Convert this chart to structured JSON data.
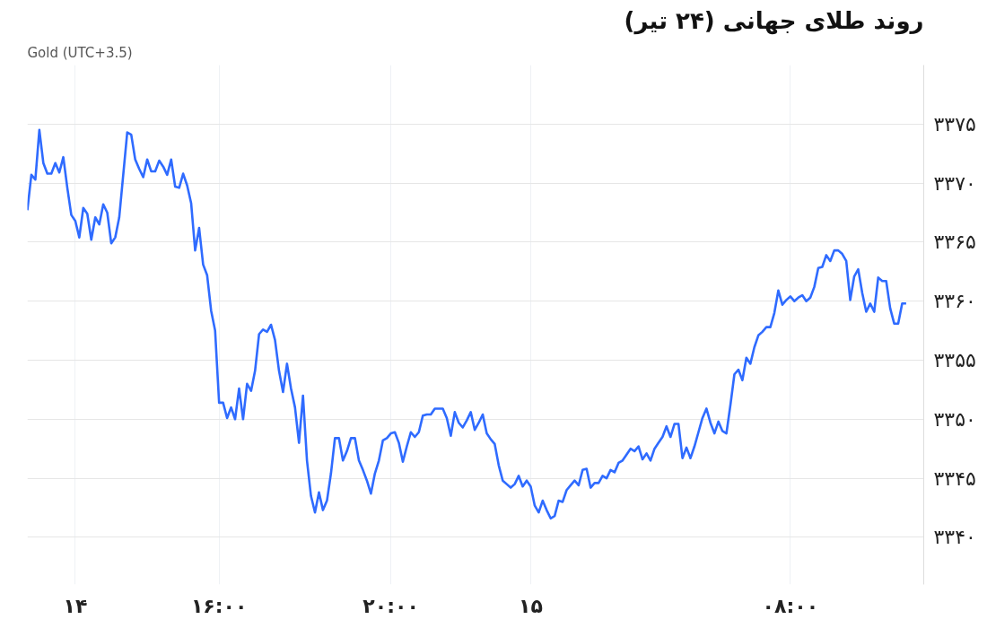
{
  "chart_data": {
    "type": "line",
    "title": "روند طلای جهانی (۲۴ تیر)",
    "subtitle": "Gold (UTC+3.5)",
    "categories": [
      null,
      null,
      null,
      null,
      null,
      null,
      null,
      null,
      null,
      null,
      null,
      null,
      "۱۴",
      null,
      null,
      null,
      null,
      null,
      null,
      null,
      null,
      null,
      null,
      null,
      null,
      null,
      null,
      null,
      null,
      null,
      null,
      null,
      null,
      null,
      null,
      null,
      null,
      null,
      null,
      null,
      null,
      null,
      null,
      null,
      null,
      null,
      null,
      null,
      "۱۶:۰۰",
      null,
      null,
      null,
      null,
      null,
      null,
      null,
      null,
      null,
      null,
      null,
      null,
      null,
      null,
      null,
      null,
      null,
      null,
      null,
      null,
      null,
      null,
      null,
      null,
      null,
      null,
      null,
      null,
      null,
      null,
      null,
      null,
      null,
      null,
      null,
      null,
      null,
      null,
      null,
      null,
      null,
      null,
      "۲۰:۰۰",
      null,
      null,
      null,
      null,
      null,
      null,
      null,
      null,
      null,
      null,
      null,
      null,
      null,
      null,
      null,
      null,
      null,
      null,
      null,
      null,
      null,
      null,
      null,
      null,
      null,
      null,
      null,
      null,
      null,
      null,
      null,
      null,
      null,
      null,
      "۱۵",
      null,
      null,
      null,
      null,
      null,
      null,
      null,
      null,
      null,
      null,
      null,
      null,
      null,
      null,
      null,
      null,
      null,
      null,
      null,
      null,
      null,
      null,
      null,
      null,
      null,
      null,
      null,
      null,
      null,
      null,
      null,
      null,
      null,
      null,
      null,
      null,
      null,
      null,
      null,
      null,
      null,
      null,
      null,
      null,
      null,
      null,
      null,
      null,
      null,
      null,
      null,
      null,
      null,
      null,
      null,
      null,
      null,
      null,
      null,
      null,
      null,
      null,
      null,
      null,
      "۰۸:۰۰",
      null,
      null,
      null,
      null,
      null,
      null,
      null,
      null,
      null,
      null,
      null,
      null,
      null,
      null,
      null,
      null,
      null,
      null,
      null,
      null,
      null,
      null,
      null,
      null,
      null,
      null,
      null,
      null,
      null
    ],
    "series": [
      {
        "color": "#2f6bff",
        "values": [
          3367.7,
          3370.7,
          3370.3,
          3374.5,
          3371.7,
          3370.8,
          3370.8,
          3371.7,
          3370.9,
          3372.2,
          3369.6,
          3367.3,
          3366.8,
          3365.4,
          3367.9,
          3367.4,
          3365.2,
          3367.1,
          3366.5,
          3368.2,
          3367.5,
          3364.9,
          3365.4,
          3367.1,
          3370.7,
          3374.3,
          3374.1,
          3372.0,
          3371.2,
          3370.5,
          3372.0,
          3371.0,
          3371.0,
          3371.9,
          3371.4,
          3370.7,
          3372.0,
          3369.7,
          3369.6,
          3370.8,
          3369.8,
          3368.3,
          3364.3,
          3366.2,
          3363.1,
          3362.2,
          3359.2,
          3357.5,
          3351.4,
          3351.4,
          3350.1,
          3351.0,
          3350.0,
          3352.6,
          3350.0,
          3353.0,
          3352.4,
          3354.1,
          3357.2,
          3357.6,
          3357.4,
          3358.0,
          3356.7,
          3354.1,
          3352.3,
          3354.7,
          3352.6,
          3351.0,
          3348.0,
          3352.0,
          3346.5,
          3343.5,
          3342.1,
          3343.8,
          3342.3,
          3343.1,
          3345.4,
          3348.4,
          3348.4,
          3346.5,
          3347.3,
          3348.4,
          3348.4,
          3346.5,
          3345.7,
          3344.8,
          3343.7,
          3345.4,
          3346.5,
          3348.2,
          3348.4,
          3348.8,
          3348.9,
          3348.0,
          3346.4,
          3347.7,
          3348.9,
          3348.5,
          3348.9,
          3350.3,
          3350.4,
          3350.4,
          3350.9,
          3350.9,
          3350.9,
          3350.1,
          3348.6,
          3350.6,
          3349.7,
          3349.3,
          3349.9,
          3350.6,
          3349.1,
          3349.7,
          3350.4,
          3348.8,
          3348.3,
          3347.9,
          3346.1,
          3344.8,
          3344.5,
          3344.2,
          3344.5,
          3345.2,
          3344.3,
          3344.8,
          3344.3,
          3342.7,
          3342.1,
          3343.1,
          3342.3,
          3341.6,
          3341.8,
          3343.1,
          3343.0,
          3344.0,
          3344.4,
          3344.8,
          3344.4,
          3345.7,
          3345.8,
          3344.2,
          3344.6,
          3344.6,
          3345.2,
          3345.0,
          3345.7,
          3345.5,
          3346.3,
          3346.5,
          3347.0,
          3347.5,
          3347.3,
          3347.7,
          3346.6,
          3347.1,
          3346.5,
          3347.5,
          3348.0,
          3348.5,
          3349.4,
          3348.5,
          3349.6,
          3349.6,
          3346.7,
          3347.6,
          3346.7,
          3347.7,
          3348.9,
          3350.1,
          3350.9,
          3349.7,
          3348.8,
          3349.8,
          3349.0,
          3348.8,
          3351.2,
          3353.8,
          3354.2,
          3353.3,
          3355.2,
          3354.7,
          3356.1,
          3357.1,
          3357.4,
          3357.8,
          3357.8,
          3359.0,
          3360.9,
          3359.7,
          3360.1,
          3360.4,
          3360.0,
          3360.3,
          3360.5,
          3360.0,
          3360.3,
          3361.2,
          3362.8,
          3362.9,
          3363.9,
          3363.4,
          3364.3,
          3364.3,
          3364.0,
          3363.4,
          3360.1,
          3362.1,
          3362.7,
          3360.7,
          3359.1,
          3359.8,
          3359.1,
          3362.0,
          3361.7,
          3361.7,
          3359.4,
          3358.1,
          3358.1,
          3359.8,
          3359.8
        ]
      }
    ],
    "ylim": [
      3336,
      3380
    ],
    "yticks": [
      {
        "value": 3340,
        "label": "۳۳۴۰"
      },
      {
        "value": 3345,
        "label": "۳۳۴۵"
      },
      {
        "value": 3350,
        "label": "۳۳۵۰"
      },
      {
        "value": 3355,
        "label": "۳۳۵۵"
      },
      {
        "value": 3360,
        "label": "۳۳۶۰"
      },
      {
        "value": 3365,
        "label": "۳۳۶۵"
      },
      {
        "value": 3370,
        "label": "۳۳۷۰"
      },
      {
        "value": 3375,
        "label": "۳۳۷۵"
      }
    ],
    "grid": true
  }
}
